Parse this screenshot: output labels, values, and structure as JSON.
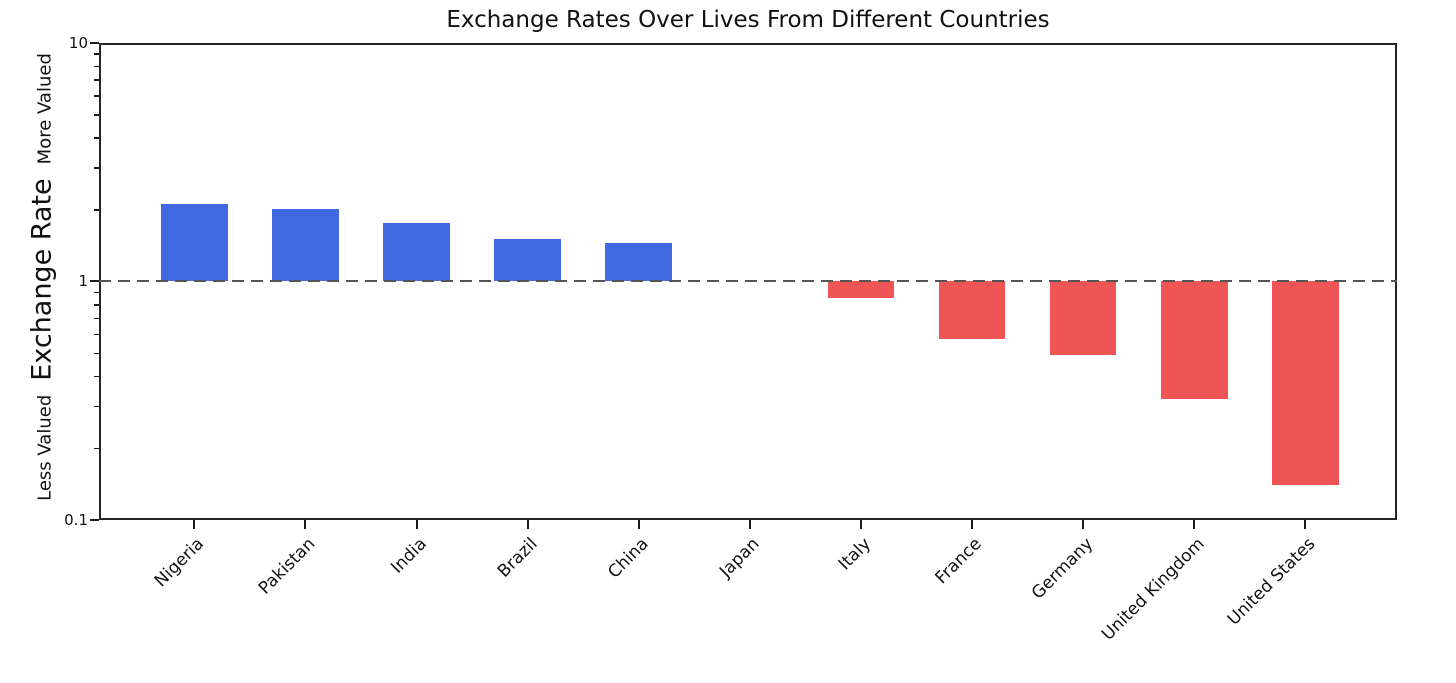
{
  "title": "Exchange Rates Over Lives From Different Countries",
  "y_axis": {
    "label_main": "Exchange Rate",
    "label_more": "More Valued",
    "label_less": "Less Valued",
    "tick_labels": [
      "10",
      "1",
      "0.1"
    ],
    "tick_values": [
      10,
      1,
      0.1
    ],
    "scale": "log"
  },
  "reference_line": {
    "value": 1,
    "style": "dashed",
    "color": "#555555"
  },
  "colors": {
    "bar_above": "#4169E1",
    "bar_below": "#F05555",
    "spine": "#262626",
    "tick": "#1a1a1a",
    "text": "#111111"
  },
  "chart_data": {
    "type": "bar",
    "title": "Exchange Rates Over Lives From Different Countries",
    "categories": [
      "Nigeria",
      "Pakistan",
      "India",
      "Brazil",
      "China",
      "Japan",
      "Italy",
      "France",
      "Germany",
      "United Kingdom",
      "United States"
    ],
    "values": [
      2.1,
      2.0,
      1.75,
      1.5,
      1.45,
      1.0,
      0.85,
      0.57,
      0.49,
      0.32,
      0.14
    ],
    "xlabel": "",
    "ylabel": "Exchange Rate",
    "yscale": "log",
    "ylim": [
      0.1,
      10
    ],
    "y_ticks": [
      10,
      1,
      0.1
    ],
    "reference_line_y": 1,
    "annotations": [
      "More Valued",
      "Less Valued"
    ],
    "grid": false,
    "legend": false,
    "bar_color_above_1": "#4169E1",
    "bar_color_below_1": "#F05555"
  }
}
